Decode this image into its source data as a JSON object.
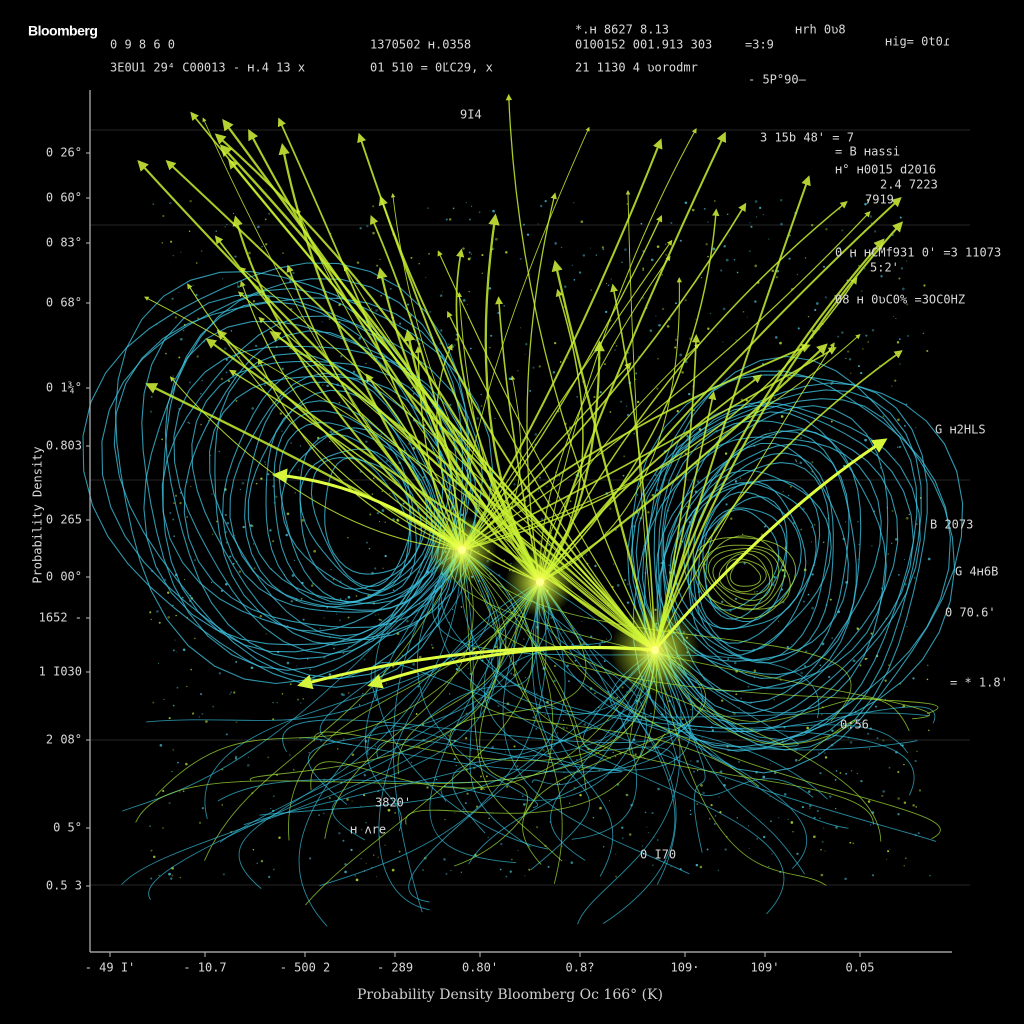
{
  "brand": "Bloomberg",
  "header": [
    "0 9 8 6 0",
    "3E0U1 29⁴ C00013 - ʜ.4 13  x",
    "1370502  ʜ.0358",
    "01 510 = 0ĽC29, x",
    "*.ʜ 8627 8.13",
    "0100152 001.913 303",
    "21 1130 4 ʋorodmr",
    "=3:9",
    "ʜrh  0ʋ8",
    "ʜig= 0t0ɾ",
    "- 5P°90–"
  ],
  "right_labels": [
    "3 15b  48' = 7",
    "= B ʜassi",
    "ʜ° ʜ0015  d2016",
    "2.4 7223",
    "7919",
    "0  ʜ ʜCMf931 0' =3 11073",
    "5:2'",
    "08  ʜ 0ʋC0% =3OC0HZ",
    "G ʜ2HLS",
    "B 2073",
    "G 4ʜ6B",
    "0 70.6'",
    "= * 1.8'",
    "0:56"
  ],
  "mid_labels": [
    "9I4",
    "3820'",
    "ʜ ʌre",
    "0 I70"
  ],
  "y_labels": [
    "0 26°",
    "0 60°",
    "0 83°",
    "0 68°",
    "0 1¾°",
    "0.803",
    "0 265",
    "0 00°",
    "1652 -",
    "1 I030",
    "2 08°",
    "0 5°",
    "0.5 3"
  ],
  "x_labels": [
    "- 49 I'",
    "- 10.7",
    "- 500 2",
    "- 289",
    "0.80'",
    "0.8?",
    "109·",
    "109'",
    "0.05"
  ],
  "y_title": "Probability Density",
  "x_title": "Probability Density  Bloomberg Oc 166°  (K)"
}
